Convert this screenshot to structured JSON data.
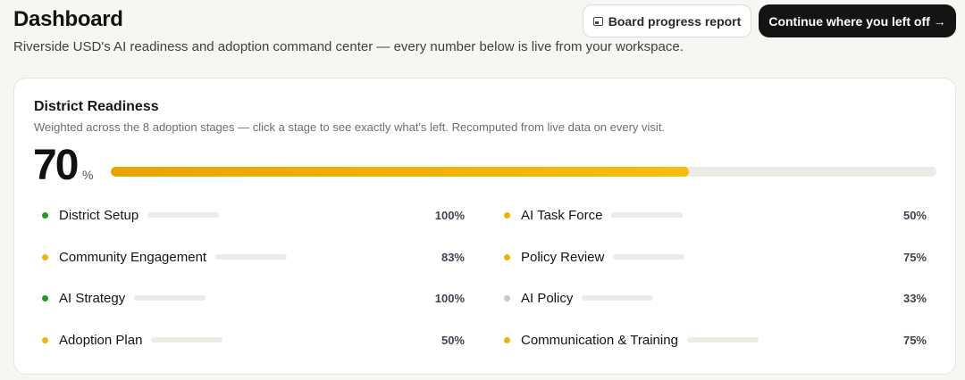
{
  "header": {
    "title": "Dashboard",
    "subtitle": "Riverside USD's AI readiness and adoption command center — every number below is live from your workspace.",
    "report_button": "Board progress report",
    "continue_button": "Continue where you left off →"
  },
  "readiness": {
    "title": "District Readiness",
    "description": "Weighted across the 8 adoption stages — click a stage to see exactly what's left. Recomputed from live data on every visit.",
    "percent": "70",
    "percent_sign": "%",
    "percent_value": 70
  },
  "colors": {
    "complete": "#1e9a2f",
    "in_progress": "#f2b10b",
    "low": "#c9c9c9",
    "bar": "#fbbd14"
  },
  "stages": [
    {
      "name": "District Setup",
      "value": "100%",
      "level": 100,
      "status": "complete"
    },
    {
      "name": "Community Engagement",
      "value": "83%",
      "level": 83,
      "status": "in_progress"
    },
    {
      "name": "AI Strategy",
      "value": "100%",
      "level": 100,
      "status": "complete"
    },
    {
      "name": "Adoption Plan",
      "value": "50%",
      "level": 50,
      "status": "in_progress"
    },
    {
      "name": "AI Task Force",
      "value": "50%",
      "level": 50,
      "status": "in_progress"
    },
    {
      "name": "Policy Review",
      "value": "75%",
      "level": 75,
      "status": "in_progress"
    },
    {
      "name": "AI Policy",
      "value": "33%",
      "level": 33,
      "status": "low"
    },
    {
      "name": "Communication & Training",
      "value": "75%",
      "level": 75,
      "status": "in_progress"
    }
  ]
}
